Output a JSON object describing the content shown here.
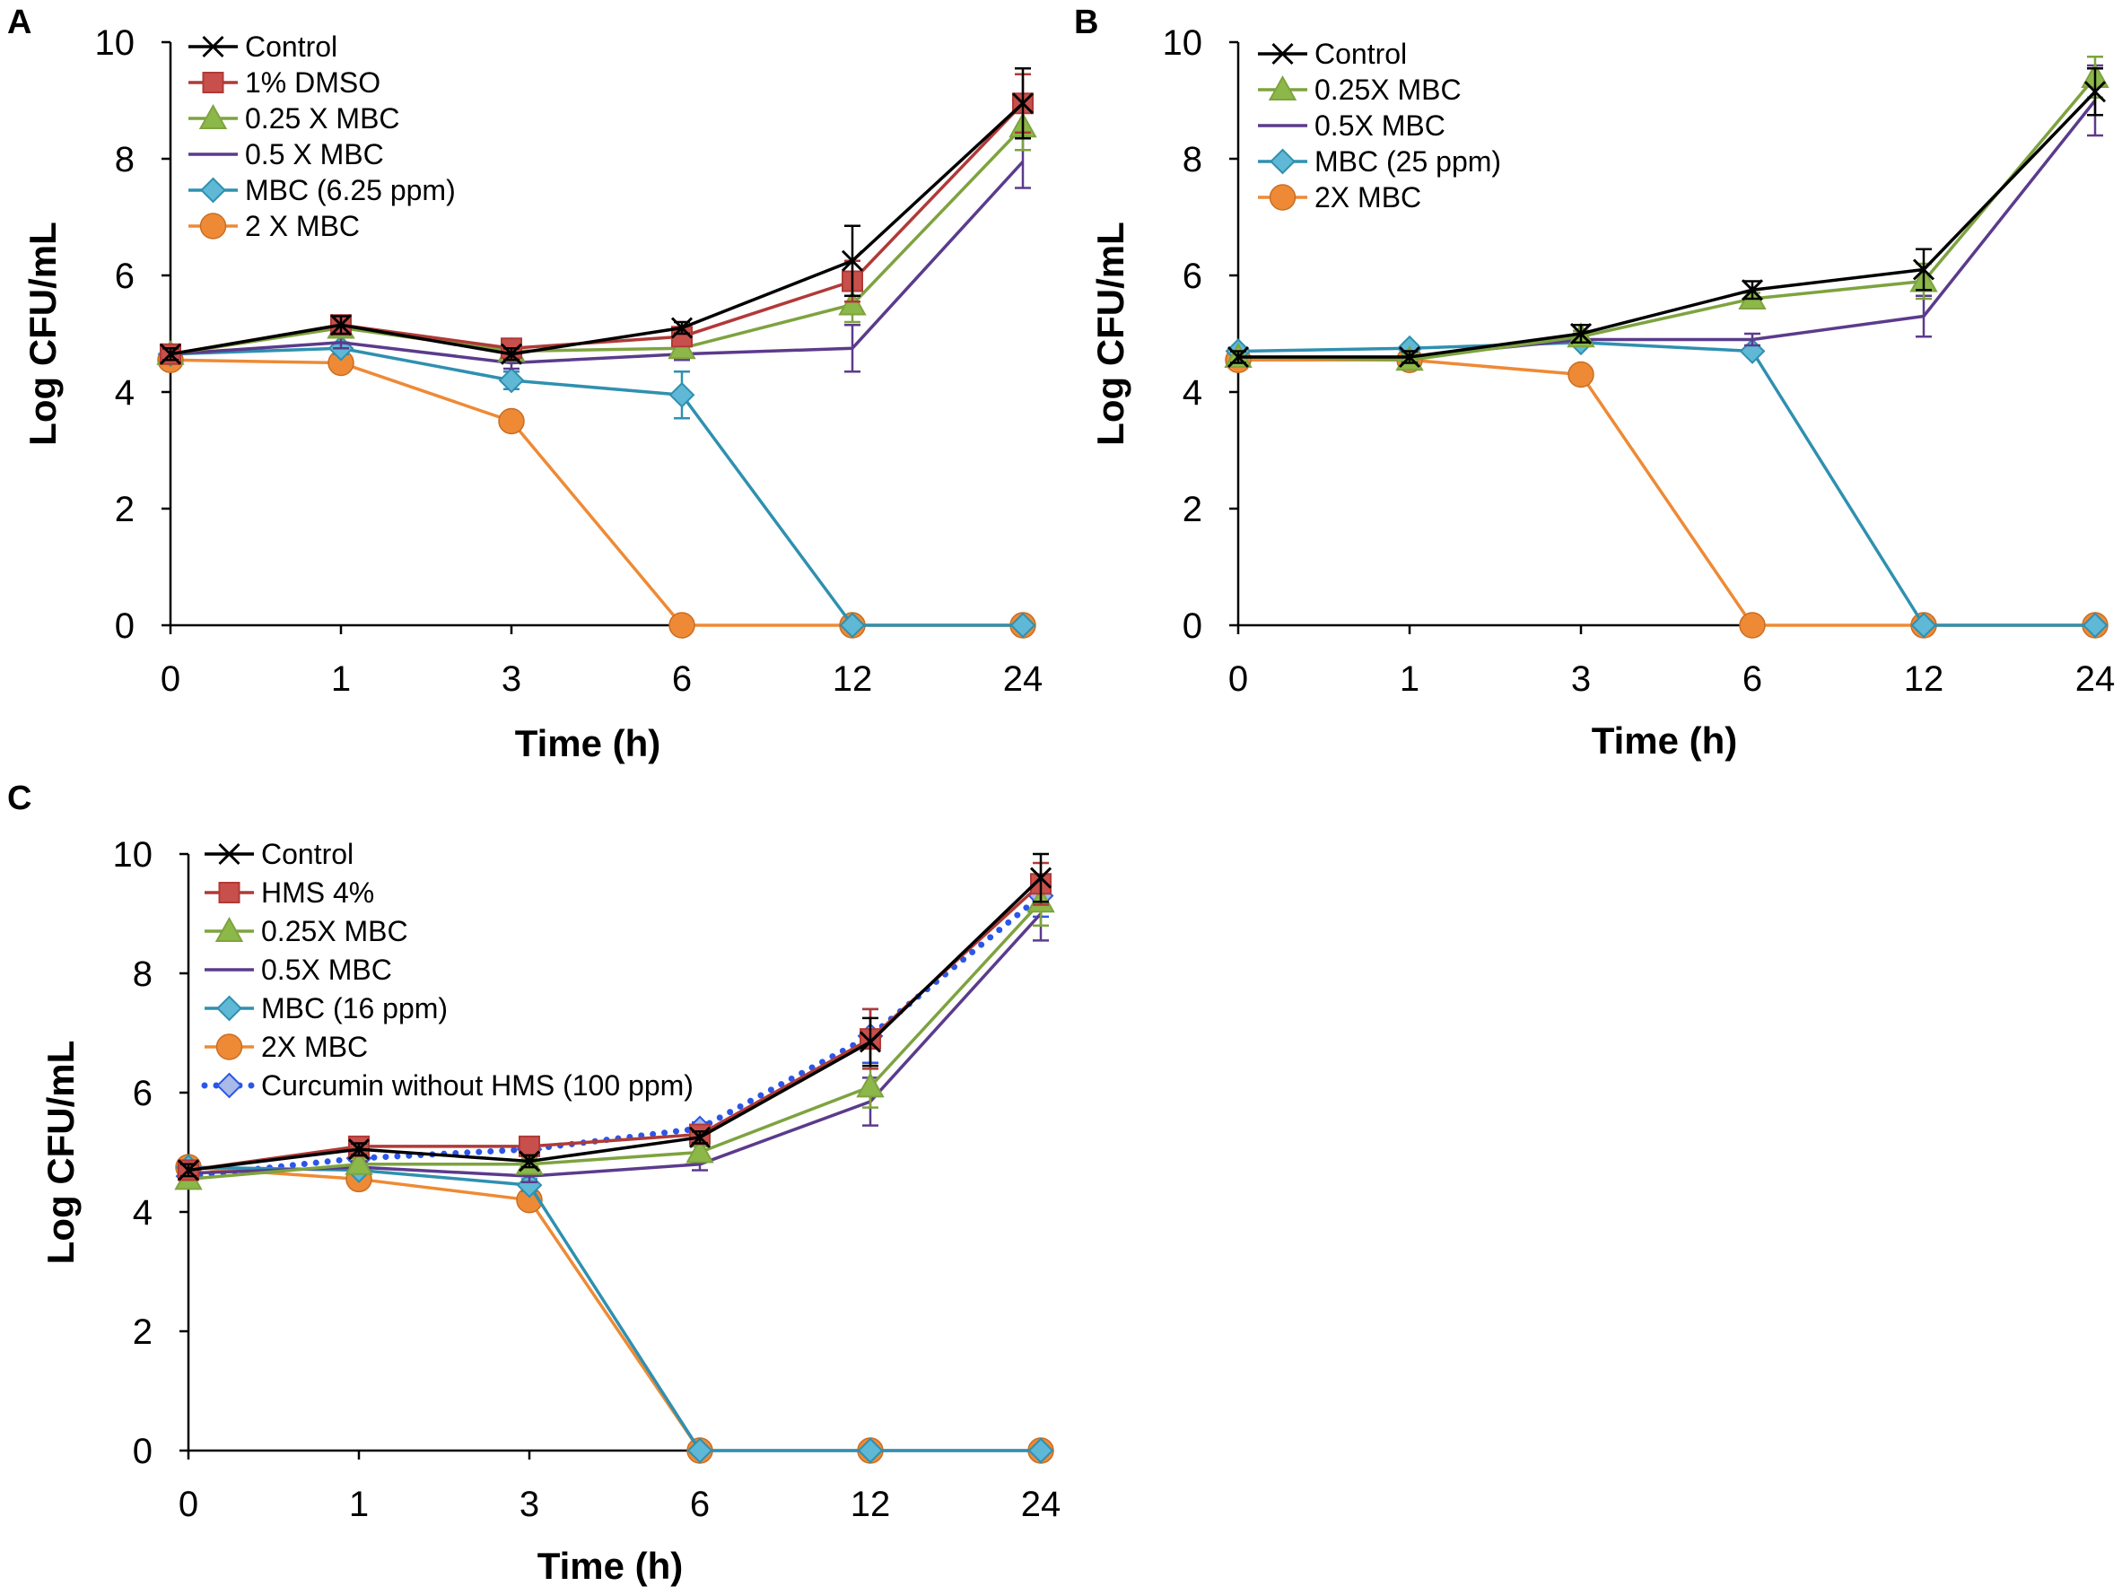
{
  "figure": {
    "panel_letters": [
      "A",
      "B",
      "C"
    ]
  },
  "chart_data": [
    {
      "panel": "A",
      "type": "line",
      "xlabel": "Time (h)",
      "ylabel": "Log CFU/mL",
      "categories": [
        "0",
        "1",
        "3",
        "6",
        "12",
        "24"
      ],
      "ylim": [
        0,
        10
      ],
      "yticks": [
        0,
        2,
        4,
        6,
        8,
        10
      ],
      "series": [
        {
          "name": "Control",
          "marker": "x",
          "color": "#000000",
          "values": [
            4.65,
            5.15,
            4.65,
            5.1,
            6.25,
            8.95
          ],
          "errors": [
            0.1,
            0.15,
            0.1,
            0.1,
            0.6,
            0.6
          ]
        },
        {
          "name": "1% DMSO",
          "marker": "square",
          "color": "#b03a37",
          "values": [
            4.65,
            5.15,
            4.75,
            4.95,
            5.9,
            8.95
          ],
          "errors": [
            0.1,
            0.1,
            0.1,
            0.1,
            0.35,
            0.5
          ]
        },
        {
          "name": "0.25 X MBC",
          "marker": "triangle",
          "color": "#7ea33f",
          "values": [
            4.65,
            5.1,
            4.7,
            4.75,
            5.5,
            8.55
          ],
          "errors": [
            0.1,
            0.1,
            0.1,
            0.1,
            0.3,
            0.4
          ]
        },
        {
          "name": "0.5 X MBC",
          "marker": "none",
          "color": "#5b3b8c",
          "values": [
            4.65,
            4.85,
            4.5,
            4.65,
            4.75,
            7.95
          ],
          "errors": [
            0.1,
            0.1,
            0.1,
            0.1,
            0.4,
            0.45
          ]
        },
        {
          "name": "MBC (6.25 ppm)",
          "marker": "diamond",
          "color": "#2f90b0",
          "values": [
            4.65,
            4.75,
            4.2,
            3.95,
            0,
            0
          ],
          "errors": [
            0.1,
            0.1,
            0.15,
            0.4,
            0,
            0
          ]
        },
        {
          "name": "2 X MBC",
          "marker": "circle",
          "color": "#ee8a35",
          "values": [
            4.55,
            4.5,
            3.5,
            0,
            0,
            0
          ],
          "errors": [
            0,
            0,
            0,
            0,
            0,
            0
          ]
        }
      ]
    },
    {
      "panel": "B",
      "type": "line",
      "xlabel": "Time (h)",
      "ylabel": "Log CFU/mL",
      "categories": [
        "0",
        "1",
        "3",
        "6",
        "12",
        "24"
      ],
      "ylim": [
        0,
        10
      ],
      "yticks": [
        0,
        2,
        4,
        6,
        8,
        10
      ],
      "series": [
        {
          "name": "Control",
          "marker": "x",
          "color": "#000000",
          "values": [
            4.6,
            4.6,
            5.0,
            5.75,
            6.1,
            9.15
          ],
          "errors": [
            0.1,
            0.1,
            0.15,
            0.15,
            0.35,
            0.4
          ]
        },
        {
          "name": "0.25X MBC",
          "marker": "triangle",
          "color": "#7ea33f",
          "values": [
            4.6,
            4.55,
            4.95,
            5.6,
            5.9,
            9.4
          ],
          "errors": [
            0.1,
            0.1,
            0.1,
            0.1,
            0.3,
            0.35
          ]
        },
        {
          "name": "0.5X MBC",
          "marker": "none",
          "color": "#5b3b8c",
          "values": [
            4.6,
            4.6,
            4.9,
            4.9,
            5.3,
            9.0
          ],
          "errors": [
            0.1,
            0.1,
            0.1,
            0.1,
            0.35,
            0.6
          ]
        },
        {
          "name": "MBC (25 ppm)",
          "marker": "diamond",
          "color": "#2f90b0",
          "values": [
            4.7,
            4.75,
            4.85,
            4.7,
            0,
            0
          ],
          "errors": [
            0.05,
            0.05,
            0.05,
            0.05,
            0,
            0
          ]
        },
        {
          "name": "2X MBC",
          "marker": "circle",
          "color": "#ee8a35",
          "values": [
            4.55,
            4.55,
            4.3,
            0,
            0,
            0
          ],
          "errors": [
            0,
            0,
            0,
            0,
            0,
            0
          ]
        }
      ]
    },
    {
      "panel": "C",
      "type": "line",
      "xlabel": "Time (h)",
      "ylabel": "Log CFU/mL",
      "categories": [
        "0",
        "1",
        "3",
        "6",
        "12",
        "24"
      ],
      "ylim": [
        0,
        10
      ],
      "yticks": [
        0,
        2,
        4,
        6,
        8,
        10
      ],
      "series": [
        {
          "name": "Control",
          "marker": "x",
          "color": "#000000",
          "values": [
            4.7,
            5.05,
            4.85,
            5.25,
            6.85,
            9.6
          ],
          "errors": [
            0.1,
            0.1,
            0.1,
            0.1,
            0.4,
            0.4
          ]
        },
        {
          "name": "HMS 4%",
          "marker": "square",
          "color": "#b03a37",
          "values": [
            4.7,
            5.1,
            5.1,
            5.3,
            6.9,
            9.5
          ],
          "errors": [
            0.1,
            0.1,
            0.1,
            0.1,
            0.5,
            0.35
          ]
        },
        {
          "name": "0.25X MBC",
          "marker": "triangle",
          "color": "#7ea33f",
          "values": [
            4.55,
            4.8,
            4.8,
            5.0,
            6.1,
            9.2
          ],
          "errors": [
            0.1,
            0.1,
            0.1,
            0.1,
            0.35,
            0.4
          ]
        },
        {
          "name": "0.5X MBC",
          "marker": "none",
          "color": "#5b3b8c",
          "values": [
            4.65,
            4.75,
            4.6,
            4.8,
            5.85,
            9.0
          ],
          "errors": [
            0.1,
            0.1,
            0.1,
            0.1,
            0.4,
            0.45
          ]
        },
        {
          "name": "MBC (16 ppm)",
          "marker": "diamond",
          "color": "#2f90b0",
          "values": [
            4.75,
            4.7,
            4.45,
            0,
            0,
            0
          ],
          "errors": [
            0.05,
            0.05,
            0.1,
            0,
            0,
            0
          ]
        },
        {
          "name": "2X MBC",
          "marker": "circle",
          "color": "#ee8a35",
          "values": [
            4.75,
            4.55,
            4.2,
            0,
            0,
            0
          ],
          "errors": [
            0,
            0,
            0,
            0,
            0,
            0
          ]
        },
        {
          "name": "Curcumin without HMS (100 ppm)",
          "marker": "diamond",
          "color": "#2b57e8",
          "dashed": true,
          "values": [
            4.6,
            4.9,
            5.05,
            5.4,
            6.95,
            9.3
          ],
          "errors": [
            0.1,
            0.1,
            0.1,
            0.1,
            0.45,
            0.35
          ]
        }
      ]
    }
  ]
}
